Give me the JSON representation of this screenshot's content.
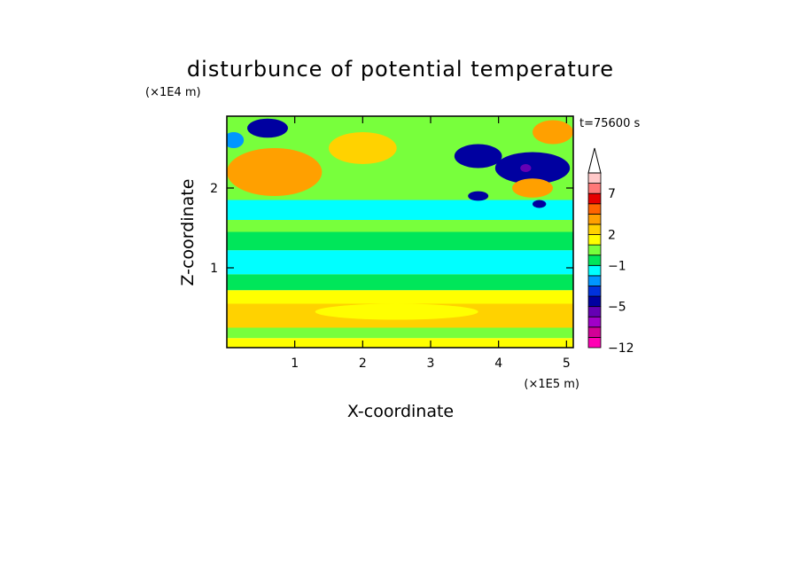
{
  "chart_data": {
    "type": "heatmap",
    "title": "disturbunce of potential temperature",
    "xlabel": "X-coordinate",
    "ylabel": "Z-coordinate",
    "x_unit": "(×1E5 m)",
    "y_unit": "(×1E4 m)",
    "time_label": "t=75600 s",
    "xlim": [
      0,
      5.1
    ],
    "ylim": [
      0,
      2.9
    ],
    "x_ticks": [
      "1",
      "2",
      "3",
      "4",
      "5"
    ],
    "y_ticks": [
      "1",
      "2"
    ],
    "x_tick_values": [
      1,
      2,
      3,
      4,
      5
    ],
    "y_tick_values": [
      1,
      2
    ],
    "colorbar": {
      "levels": [
        -12,
        -11,
        -9,
        -7,
        -5,
        -4,
        -3,
        -2,
        -1,
        0,
        1,
        2,
        3,
        4,
        5,
        7,
        9
      ],
      "colors": [
        "#ff00b4",
        "#d20096",
        "#a000c8",
        "#6400b4",
        "#0000a0",
        "#0032dc",
        "#0096ff",
        "#00ffff",
        "#00e65a",
        "#78ff3c",
        "#ffff00",
        "#ffd200",
        "#ffa000",
        "#ff6400",
        "#e60000",
        "#ff7878",
        "#ffc8c8"
      ],
      "labels": [
        "−12",
        "−5",
        "−1",
        "2",
        "7"
      ],
      "label_values": [
        -12,
        -5,
        -1,
        2,
        7
      ],
      "extend": "max"
    },
    "bands": [
      {
        "z": [
          0.0,
          0.12
        ],
        "value": 1.5
      },
      {
        "z": [
          0.12,
          0.25
        ],
        "value": 0.5
      },
      {
        "z": [
          0.25,
          0.55
        ],
        "value": 2.5
      },
      {
        "z": [
          0.55,
          0.72
        ],
        "value": 1.5
      },
      {
        "z": [
          0.72,
          0.92
        ],
        "value": -0.5
      },
      {
        "z": [
          0.92,
          1.22
        ],
        "value": -1.5
      },
      {
        "z": [
          1.22,
          1.45
        ],
        "value": -0.5
      },
      {
        "z": [
          1.45,
          1.6
        ],
        "value": 0.5
      },
      {
        "z": [
          1.6,
          1.85
        ],
        "value": -1.5
      },
      {
        "z": [
          1.85,
          2.9
        ],
        "value": 0.5
      }
    ],
    "features": [
      {
        "x": 0.6,
        "z": 2.75,
        "rx": 0.3,
        "rz": 0.12,
        "value": -5
      },
      {
        "x": 0.1,
        "z": 2.6,
        "rx": 0.15,
        "rz": 0.1,
        "value": -3
      },
      {
        "x": 0.7,
        "z": 2.2,
        "rx": 0.7,
        "rz": 0.3,
        "value": 3
      },
      {
        "x": 2.0,
        "z": 2.5,
        "rx": 0.5,
        "rz": 0.2,
        "value": 2
      },
      {
        "x": 3.7,
        "z": 2.4,
        "rx": 0.35,
        "rz": 0.15,
        "value": -5
      },
      {
        "x": 4.5,
        "z": 2.25,
        "rx": 0.55,
        "rz": 0.2,
        "value": -5
      },
      {
        "x": 4.4,
        "z": 2.25,
        "rx": 0.08,
        "rz": 0.05,
        "value": -7
      },
      {
        "x": 3.7,
        "z": 1.9,
        "rx": 0.15,
        "rz": 0.06,
        "value": -5
      },
      {
        "x": 4.6,
        "z": 1.8,
        "rx": 0.1,
        "rz": 0.05,
        "value": -5
      },
      {
        "x": 4.5,
        "z": 2.0,
        "rx": 0.3,
        "rz": 0.12,
        "value": 3
      },
      {
        "x": 4.8,
        "z": 2.7,
        "rx": 0.3,
        "rz": 0.15,
        "value": 3
      },
      {
        "x": 2.5,
        "z": 0.45,
        "rx": 1.2,
        "rz": 0.1,
        "value": 1.5
      }
    ]
  }
}
